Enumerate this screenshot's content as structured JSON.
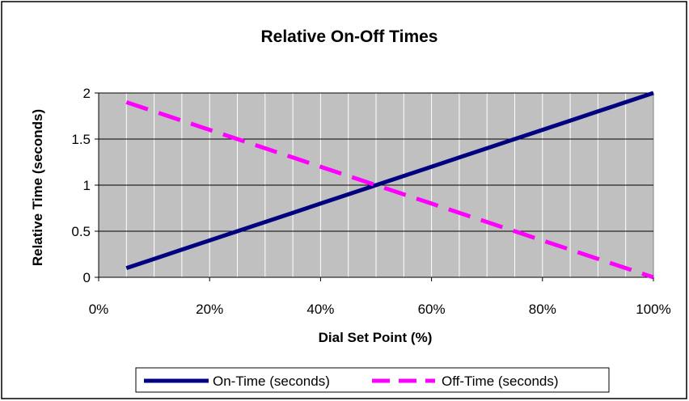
{
  "chart_data": {
    "type": "line",
    "title": "Relative On-Off Times",
    "xlabel": "Dial Set Point (%)",
    "ylabel": "Relative Time (seconds)",
    "xlim": [
      0,
      100
    ],
    "ylim": [
      0,
      2
    ],
    "x_ticks": [
      "0%",
      "20%",
      "40%",
      "60%",
      "80%",
      "100%"
    ],
    "y_ticks": [
      "0",
      "0.5",
      "1",
      "1.5",
      "2"
    ],
    "x_tick_values": [
      0,
      20,
      40,
      60,
      80,
      100
    ],
    "y_tick_values": [
      0,
      0.5,
      1,
      1.5,
      2
    ],
    "grid": true,
    "plot_background": "#c0c0c0",
    "legend_position": "bottom",
    "x": [
      5,
      10,
      15,
      20,
      25,
      30,
      35,
      40,
      45,
      50,
      55,
      60,
      65,
      70,
      75,
      80,
      85,
      90,
      95,
      100
    ],
    "series": [
      {
        "name": "On-Time (seconds)",
        "color": "#000080",
        "style": "solid",
        "values": [
          0.1,
          0.2,
          0.3,
          0.4,
          0.5,
          0.6,
          0.7,
          0.8,
          0.9,
          1.0,
          1.1,
          1.2,
          1.3,
          1.4,
          1.5,
          1.6,
          1.7,
          1.8,
          1.9,
          2.0
        ]
      },
      {
        "name": "Off-Time (seconds)",
        "color": "#ff00ff",
        "style": "dashed",
        "values": [
          1.9,
          1.8,
          1.7,
          1.6,
          1.5,
          1.4,
          1.3,
          1.2,
          1.1,
          1.0,
          0.9,
          0.8,
          0.7,
          0.6,
          0.5,
          0.4,
          0.3,
          0.2,
          0.1,
          0.0
        ]
      }
    ]
  }
}
